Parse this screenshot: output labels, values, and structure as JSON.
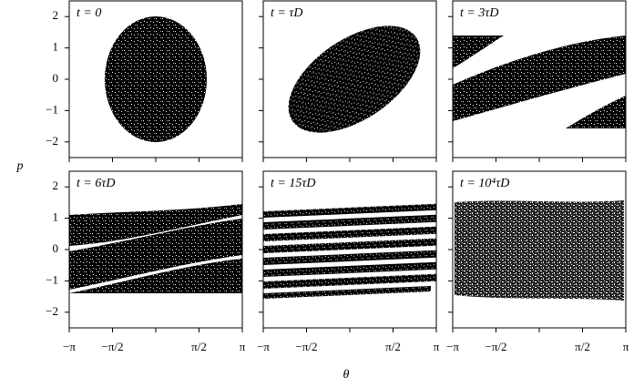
{
  "figure": {
    "xlabel": "θ",
    "ylabel": "p"
  },
  "chart_data": [
    {
      "type": "scatter",
      "title": "t = 0",
      "xlim": [
        -3.14159,
        3.14159
      ],
      "ylim": [
        -2.5,
        2.5
      ],
      "xticks": [
        -3.14159,
        -1.5708,
        0,
        1.5708,
        3.14159
      ],
      "yticks": [
        {
          "value": -2,
          "label": "−2"
        },
        {
          "value": -1,
          "label": "−1"
        },
        0,
        1,
        2
      ]
    },
    {
      "type": "scatter",
      "title": "t = τD",
      "xlim": [
        -3.14159,
        3.14159
      ],
      "ylim": [
        -2.5,
        2.5
      ],
      "xticks": [
        -3.14159,
        -1.5708,
        0,
        1.5708,
        3.14159
      ],
      "yticks": [
        -2,
        -1,
        0,
        1,
        2
      ]
    },
    {
      "type": "scatter",
      "title": "t = 3τD",
      "xlim": [
        -3.14159,
        3.14159
      ],
      "ylim": [
        -2.5,
        2.5
      ],
      "xticks": [
        -3.14159,
        -1.5708,
        0,
        1.5708,
        3.14159
      ],
      "yticks": [
        -2,
        -1,
        0,
        1,
        2
      ]
    },
    {
      "type": "scatter",
      "title": "t = 6τD",
      "xlim": [
        -3.14159,
        3.14159
      ],
      "ylim": [
        -2.5,
        2.5
      ],
      "xticks": [
        {
          "value": -3.14159,
          "label": "−π"
        },
        {
          "value": -1.5708,
          "label": "−π/2"
        },
        0,
        {
          "value": 1.5708,
          "label": "π/2"
        },
        {
          "value": 3.14159,
          "label": "π"
        }
      ],
      "yticks": [
        {
          "value": -2,
          "label": "−2"
        },
        {
          "value": -1,
          "label": "−1"
        },
        0,
        1,
        2
      ]
    },
    {
      "type": "scatter",
      "title": "t = 15τD",
      "xlim": [
        -3.14159,
        3.14159
      ],
      "ylim": [
        -2.5,
        2.5
      ],
      "xticks": [
        {
          "value": -3.14159,
          "label": "−π"
        },
        {
          "value": -1.5708,
          "label": "−π/2"
        },
        0,
        {
          "value": 1.5708,
          "label": "π/2"
        },
        {
          "value": 3.14159,
          "label": "π"
        }
      ],
      "yticks": [
        -2,
        -1,
        0,
        1,
        2
      ]
    },
    {
      "type": "scatter",
      "title": "t = 10⁴τD",
      "xlim": [
        -3.14159,
        3.14159
      ],
      "ylim": [
        -2.5,
        2.5
      ],
      "xticks": [
        {
          "value": -3.14159,
          "label": "−π"
        },
        {
          "value": -1.5708,
          "label": "−π/2"
        },
        0,
        {
          "value": 1.5708,
          "label": "π/2"
        },
        {
          "value": 3.14159,
          "label": "π"
        }
      ],
      "yticks": [
        -2,
        -1,
        0,
        1,
        2
      ]
    }
  ]
}
